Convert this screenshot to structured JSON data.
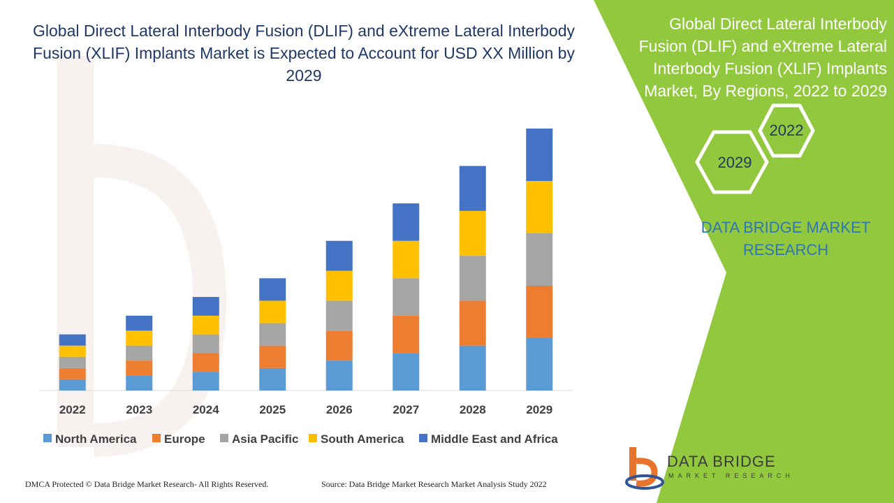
{
  "chart_data": {
    "type": "bar",
    "stacked": true,
    "title": "Global Direct Lateral Interbody Fusion (DLIF) and eXtreme Lateral Interbody Fusion (XLIF) Implants Market is Expected to Account for USD XX Million by 2029",
    "categories": [
      "2022",
      "2023",
      "2024",
      "2025",
      "2026",
      "2027",
      "2028",
      "2029"
    ],
    "series": [
      {
        "name": "North America",
        "color": "#5b9bd5",
        "values": [
          3,
          4,
          5,
          6,
          8,
          10,
          12,
          14
        ]
      },
      {
        "name": "Europe",
        "color": "#ed7d31",
        "values": [
          3,
          4,
          5,
          6,
          8,
          10,
          12,
          14
        ]
      },
      {
        "name": "Asia Pacific",
        "color": "#a5a5a5",
        "values": [
          3,
          4,
          5,
          6,
          8,
          10,
          12,
          14
        ]
      },
      {
        "name": "South America",
        "color": "#ffc000",
        "values": [
          3,
          4,
          5,
          6,
          8,
          10,
          12,
          14
        ]
      },
      {
        "name": "Middle East and Africa",
        "color": "#4472c4",
        "values": [
          3,
          4,
          5,
          6,
          8,
          10,
          12,
          14
        ]
      }
    ],
    "xlabel": "",
    "ylabel": "",
    "ylim": [
      0,
      70
    ],
    "grid": false,
    "legend": "bottom"
  },
  "side_panel": {
    "title": "Global Direct Lateral Interbody Fusion (DLIF) and eXtreme Lateral Interbody Fusion (XLIF) Implants Market, By Regions, 2022 to 2029",
    "hex_start": "2022",
    "hex_end": "2029",
    "brand": "DATA BRIDGE MARKET RESEARCH",
    "accent_color": "#92c83e"
  },
  "logo": {
    "name": "DATA BRIDGE",
    "sub": "MARKET RESEARCH"
  },
  "footer": {
    "left": "DMCA Protected © Data Bridge Market Research- All Rights Reserved.",
    "right": "Source: Data Bridge Market Research Market Analysis Study 2022"
  }
}
